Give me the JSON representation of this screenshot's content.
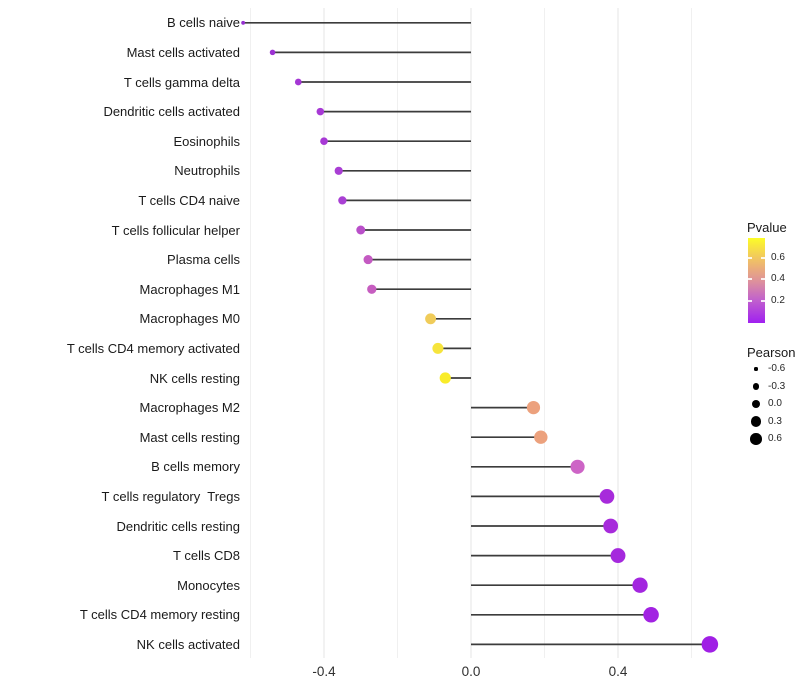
{
  "chart_data": {
    "type": "scatter",
    "variant": "lollipop",
    "title": "",
    "xlabel": "",
    "ylabel": "",
    "x_axis": {
      "ticks": [
        {
          "label": "-0.4",
          "value": -0.4
        },
        {
          "label": "0.0",
          "value": 0.0
        },
        {
          "label": "0.4",
          "value": 0.4
        }
      ],
      "major_gridlines": [
        -0.4,
        0.0,
        0.4
      ],
      "minor_gridlines": [
        -0.6,
        -0.2,
        0.2,
        0.6
      ],
      "xlim": [
        -0.68,
        0.66
      ],
      "baseline_value": 0.0
    },
    "points": [
      {
        "label": "B cells naive",
        "pearson": -0.62,
        "pvalue": 0.1,
        "color": "#9530CF"
      },
      {
        "label": "Mast cells activated",
        "pearson": -0.54,
        "pvalue": 0.11,
        "color": "#9C32D2"
      },
      {
        "label": "T cells gamma delta",
        "pearson": -0.47,
        "pvalue": 0.12,
        "color": "#A436D4"
      },
      {
        "label": "Dendritic cells activated",
        "pearson": -0.41,
        "pvalue": 0.13,
        "color": "#A739D5"
      },
      {
        "label": "Eosinophils",
        "pearson": -0.4,
        "pvalue": 0.13,
        "color": "#A739D5"
      },
      {
        "label": "Neutrophils",
        "pearson": -0.36,
        "pvalue": 0.14,
        "color": "#A93ED4"
      },
      {
        "label": "T cells CD4 naive",
        "pearson": -0.35,
        "pvalue": 0.14,
        "color": "#A940D4"
      },
      {
        "label": "T cells follicular helper",
        "pearson": -0.3,
        "pvalue": 0.2,
        "color": "#B94FC9"
      },
      {
        "label": "Plasma cells",
        "pearson": -0.28,
        "pvalue": 0.26,
        "color": "#C45AC2"
      },
      {
        "label": "Macrophages M1",
        "pearson": -0.27,
        "pvalue": 0.27,
        "color": "#C65DC0"
      },
      {
        "label": "Macrophages M0",
        "pearson": -0.11,
        "pvalue": 0.62,
        "color": "#F0CC5A"
      },
      {
        "label": "T cells CD4 memory activated",
        "pearson": -0.09,
        "pvalue": 0.7,
        "color": "#F6E43C"
      },
      {
        "label": "NK cells resting",
        "pearson": -0.07,
        "pvalue": 0.73,
        "color": "#F9EC29"
      },
      {
        "label": "Macrophages M2",
        "pearson": 0.17,
        "pvalue": 0.48,
        "color": "#ECA17D"
      },
      {
        "label": "Mast cells resting",
        "pearson": 0.19,
        "pvalue": 0.48,
        "color": "#ECA17D"
      },
      {
        "label": "B cells memory",
        "pearson": 0.29,
        "pvalue": 0.29,
        "color": "#CD64C6"
      },
      {
        "label": "T cells regulatory  Tregs",
        "pearson": 0.37,
        "pvalue": 0.06,
        "color": "#A72BDB"
      },
      {
        "label": "Dendritic cells resting",
        "pearson": 0.38,
        "pvalue": 0.06,
        "color": "#A72BDB"
      },
      {
        "label": "T cells CD8",
        "pearson": 0.4,
        "pvalue": 0.05,
        "color": "#A529DD"
      },
      {
        "label": "Monocytes",
        "pearson": 0.46,
        "pvalue": 0.04,
        "color": "#A326DF"
      },
      {
        "label": "T cells CD4 memory resting",
        "pearson": 0.49,
        "pvalue": 0.03,
        "color": "#A222E2"
      },
      {
        "label": "NK cells activated",
        "pearson": 0.65,
        "pvalue": 0.02,
        "color": "#A01FE5"
      }
    ]
  },
  "legend_pvalue": {
    "title": "Pvalue",
    "bar_range": [
      0,
      0.78
    ],
    "ticks": [
      {
        "label": "0.6",
        "value": 0.6
      },
      {
        "label": "0.4",
        "value": 0.4
      },
      {
        "label": "0.2",
        "value": 0.2
      }
    ],
    "gradient_stops_bottom_to_top": [
      "#A020F0 0%",
      "#C263CB 28%",
      "#DC8F9E 48%",
      "#EBAE79 65%",
      "#F3CE58 80%",
      "#F9E93A 92%",
      "#FCFD27 100%"
    ],
    "low_color": "#A020F0",
    "high_color": "#FCFD27"
  },
  "legend_pearson": {
    "title": "Pearson",
    "dot_color": "#000000",
    "items": [
      {
        "label": "-0.6",
        "value": -0.6
      },
      {
        "label": "-0.3",
        "value": -0.3
      },
      {
        "label": "0.0",
        "value": 0.0
      },
      {
        "label": "0.3",
        "value": 0.3
      },
      {
        "label": "0.6",
        "value": 0.6
      }
    ]
  }
}
